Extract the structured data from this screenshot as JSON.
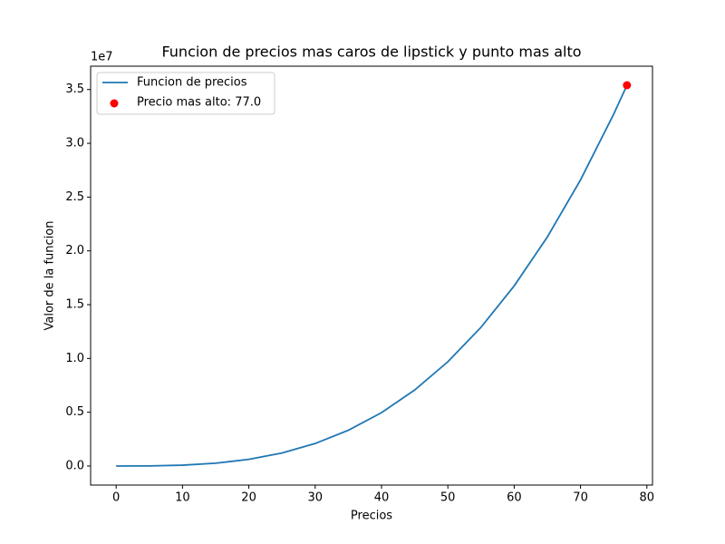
{
  "chart_data": {
    "type": "line",
    "title": "Funcion de precios mas caros de lipstick y punto mas alto",
    "x_label": "Precios",
    "y_label": "Valor de la funcion",
    "y_offset_label": "1e7",
    "x": [
      0,
      5,
      10,
      15,
      20,
      25,
      30,
      35,
      40,
      45,
      50,
      55,
      60,
      65,
      70,
      75,
      77
    ],
    "series": [
      {
        "name": "Funcion de precios",
        "color": "#1f77b4",
        "values": [
          0,
          9693,
          77540,
          261700,
          620300,
          1211600,
          2093600,
          3324500,
          4962600,
          7065800,
          9692500,
          12900700,
          16748600,
          21294400,
          26596200,
          32712200,
          35400000
        ]
      }
    ],
    "highlight": {
      "name": "Precio mas alto: 77.0",
      "color": "#ff0000",
      "x": 77,
      "y": 35400000
    },
    "xlim": [
      -3.85,
      80.85
    ],
    "xticks": [
      0,
      10,
      20,
      30,
      40,
      50,
      60,
      70,
      80
    ],
    "ylim": [
      -1770000,
      37170000
    ],
    "yticks": [
      {
        "value": 0,
        "label": "0.0"
      },
      {
        "value": 5000000,
        "label": "0.5"
      },
      {
        "value": 10000000,
        "label": "1.0"
      },
      {
        "value": 15000000,
        "label": "1.5"
      },
      {
        "value": 20000000,
        "label": "2.0"
      },
      {
        "value": 25000000,
        "label": "2.5"
      },
      {
        "value": 30000000,
        "label": "3.0"
      },
      {
        "value": 35000000,
        "label": "3.5"
      }
    ],
    "legend": "upper left"
  }
}
